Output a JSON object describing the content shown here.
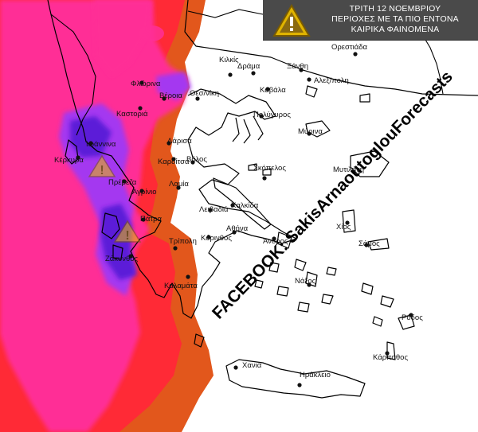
{
  "title": {
    "line1": "ΤΡΙΤΗ 12 ΝΟΕΜΒΡΙΟΥ",
    "line2": "ΠΕΡΙΟΧΕΣ ΜΕ ΤΑ ΠΙΟ ΕΝΤΟΝΑ",
    "line3": "ΚΑΙΡΙΚΑ ΦΑΙΝΟΜΕΝΑ",
    "icon": "warning-triangle-icon"
  },
  "watermark": "FACEBOOK: SakisArnaoutoglouForecasts",
  "colors": {
    "heavy": "#5b1fd8",
    "very_high": "#a437f0",
    "high": "#ff2f96",
    "moderate": "#ff2a36",
    "low": "#e2571c",
    "warning": "#e8c000"
  },
  "warning_icons": [
    "warning-triangle-icon",
    "warning-triangle-icon"
  ],
  "cities": [
    {
      "name": "Ορεστιάδα"
    },
    {
      "name": "Δράμα"
    },
    {
      "name": "Ξάνθη"
    },
    {
      "name": "Κιλκίς"
    },
    {
      "name": "Αλεξ/πολη"
    },
    {
      "name": "Φλώρινα"
    },
    {
      "name": "Βέροια"
    },
    {
      "name": "Θεσ/νίκη"
    },
    {
      "name": "Καβάλα"
    },
    {
      "name": "Καστοριά"
    },
    {
      "name": "Πολύγυρος"
    },
    {
      "name": "Μύρινα"
    },
    {
      "name": "Ιωάννινα"
    },
    {
      "name": "Λάρισα"
    },
    {
      "name": "Κέρκυρα"
    },
    {
      "name": "Καρδίτσα"
    },
    {
      "name": "Βόλος"
    },
    {
      "name": "Μυτιλήνη"
    },
    {
      "name": "Πρέβεζα"
    },
    {
      "name": "Σκόπελος"
    },
    {
      "name": "Λαμία"
    },
    {
      "name": "Αγρίνιο"
    },
    {
      "name": "Λειβαδιά"
    },
    {
      "name": "Χαλκίδα"
    },
    {
      "name": "Πάτρα"
    },
    {
      "name": "Χίος"
    },
    {
      "name": "Αθήνα"
    },
    {
      "name": "Κόρινθος"
    },
    {
      "name": "Άνδρος"
    },
    {
      "name": "Σάμος"
    },
    {
      "name": "Ζάκυνθος"
    },
    {
      "name": "Τρίπολη"
    },
    {
      "name": "Νάξος"
    },
    {
      "name": "Καλαμάτα"
    },
    {
      "name": "Ρόδος"
    },
    {
      "name": "Κάρπαθος"
    },
    {
      "name": "Χανιά"
    },
    {
      "name": "Ηράκλειο"
    }
  ]
}
